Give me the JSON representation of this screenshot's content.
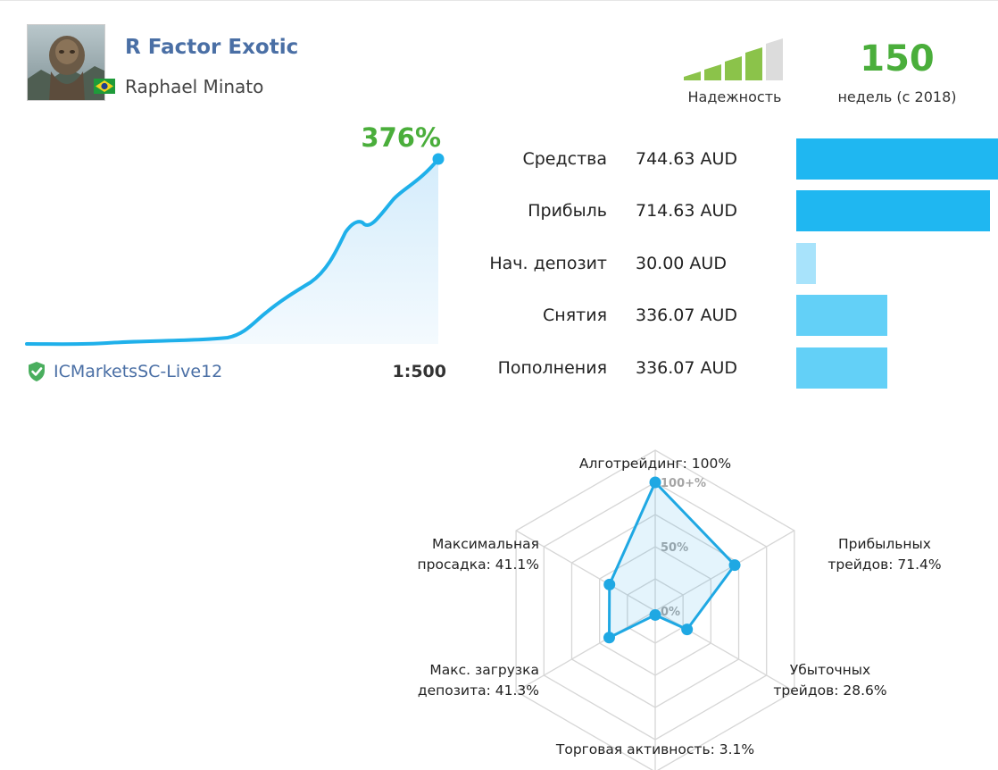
{
  "signal": {
    "name": "R Factor Exotic",
    "author": "Raphael Minato",
    "country_flag": "brazil-flag"
  },
  "reliability": {
    "label": "Надежность",
    "level": 4,
    "max_level": 5,
    "active_color": "#8bc34a",
    "inactive_color": "#dcdcdc"
  },
  "age": {
    "weeks": "150",
    "label": "недель (с 2018)"
  },
  "growth": {
    "value": "376%",
    "color": "#4aae3b",
    "line_color": "#1fb0ea"
  },
  "broker": {
    "name": "ICMarketsSC-Live12",
    "icon": "verified-shield-icon",
    "leverage": "1:500"
  },
  "stats": [
    {
      "label": "Средства",
      "value": "744.63 AUD",
      "amount": 744.63,
      "color": "#1fb7f1"
    },
    {
      "label": "Прибыль",
      "value": "714.63 AUD",
      "amount": 714.63,
      "color": "#1fb7f1"
    },
    {
      "label": "Нач. депозит",
      "value": "30.00 AUD",
      "amount": 30.0,
      "color": "#a8e3fb"
    },
    {
      "label": "Снятия",
      "value": "336.07 AUD",
      "amount": 336.07,
      "color": "#63d0f7"
    },
    {
      "label": "Пополнения",
      "value": "336.07 AUD",
      "amount": 336.07,
      "color": "#63d0f7"
    }
  ],
  "radar": {
    "ticks": [
      "100+%",
      "50%",
      "0%"
    ],
    "axes": [
      {
        "label_lines": [
          "Алготрейдинг: 100%"
        ],
        "value": 100
      },
      {
        "label_lines": [
          "Прибыльных",
          "трейдов: 71.4%"
        ],
        "value": 71.4
      },
      {
        "label_lines": [
          "Убыточных",
          "трейдов: 28.6%"
        ],
        "value": 28.6
      },
      {
        "label_lines": [
          "Торговая активность: 3.1%"
        ],
        "value": 3.1
      },
      {
        "label_lines": [
          "Макс. загрузка",
          "депозита: 41.3%"
        ],
        "value": 41.3
      },
      {
        "label_lines": [
          "Максимальная",
          "просадка: 41.1%"
        ],
        "value": 41.1
      }
    ],
    "color": "#1fa8e3"
  }
}
